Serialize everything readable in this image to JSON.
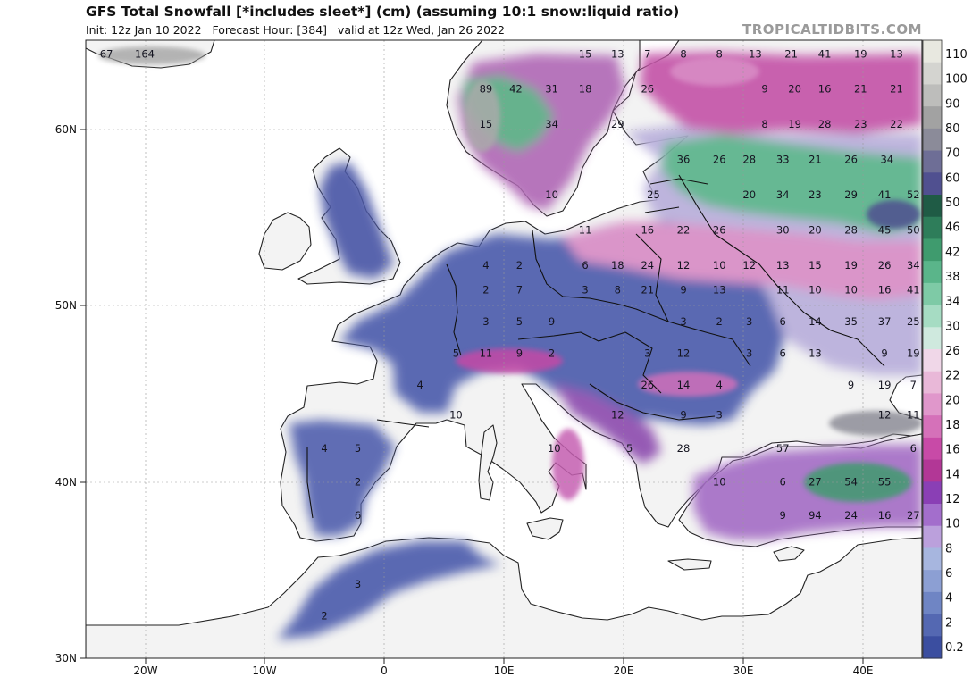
{
  "header": {
    "title": "GFS Total Snowfall [*includes sleet*] (cm) (assuming 10:1 snow:liquid ratio)",
    "init": "Init: 12z Jan 10 2022",
    "forecast_hour": "Forecast Hour: [384]",
    "valid": "valid at 12z Wed, Jan 26 2022",
    "watermark": "TROPICALTIDBITS.COM"
  },
  "axes": {
    "lat_labels": [
      "60N",
      "50N",
      "40N",
      "30N"
    ],
    "lon_labels": [
      "20W",
      "10W",
      "0",
      "10E",
      "20E",
      "30E",
      "40E"
    ]
  },
  "colorbar": {
    "labels": [
      "110",
      "100",
      "90",
      "80",
      "70",
      "60",
      "50",
      "46",
      "42",
      "38",
      "34",
      "30",
      "26",
      "22",
      "20",
      "18",
      "16",
      "14",
      "12",
      "10",
      "8",
      "6",
      "4",
      "2",
      "0.2"
    ],
    "colors": [
      "#e8e8e0",
      "#d4d4d0",
      "#bdbdbb",
      "#a2a2a2",
      "#8b8b99",
      "#6e6e96",
      "#505090",
      "#1f5b45",
      "#2e7d5a",
      "#3f9b6e",
      "#5ab58a",
      "#7ecaa6",
      "#a6dcc3",
      "#cfe9de",
      "#f0d7e8",
      "#e9b8d8",
      "#e097cb",
      "#d571b9",
      "#c84aa7",
      "#b23796",
      "#8a3fb5",
      "#a36ecc",
      "#bba0dc",
      "#a7b6df",
      "#8c9fd3",
      "#6f85c4",
      "#5468b2",
      "#3b4ea0"
    ]
  },
  "map_values": [
    {
      "t": "67",
      "lat": 64.3,
      "lon": -23.2
    },
    {
      "t": "164",
      "lat": 64.3,
      "lon": -20.0
    },
    {
      "t": "15",
      "lat": 64.3,
      "lon": 16.8
    },
    {
      "t": "13",
      "lat": 64.3,
      "lon": 19.5
    },
    {
      "t": "7",
      "lat": 64.3,
      "lon": 22.0
    },
    {
      "t": "8",
      "lat": 64.3,
      "lon": 25.0
    },
    {
      "t": "8",
      "lat": 64.3,
      "lon": 28.0
    },
    {
      "t": "13",
      "lat": 64.3,
      "lon": 31.0
    },
    {
      "t": "21",
      "lat": 64.3,
      "lon": 34.0
    },
    {
      "t": "41",
      "lat": 64.3,
      "lon": 36.8
    },
    {
      "t": "19",
      "lat": 64.3,
      "lon": 39.8
    },
    {
      "t": "13",
      "lat": 64.3,
      "lon": 42.8
    },
    {
      "t": "89",
      "lat": 62.3,
      "lon": 8.5
    },
    {
      "t": "42",
      "lat": 62.3,
      "lon": 11.0
    },
    {
      "t": "31",
      "lat": 62.3,
      "lon": 14.0
    },
    {
      "t": "18",
      "lat": 62.3,
      "lon": 16.8
    },
    {
      "t": "26",
      "lat": 62.3,
      "lon": 22.0
    },
    {
      "t": "9",
      "lat": 62.3,
      "lon": 31.8
    },
    {
      "t": "20",
      "lat": 62.3,
      "lon": 34.3
    },
    {
      "t": "16",
      "lat": 62.3,
      "lon": 36.8
    },
    {
      "t": "21",
      "lat": 62.3,
      "lon": 39.8
    },
    {
      "t": "21",
      "lat": 62.3,
      "lon": 42.8
    },
    {
      "t": "15",
      "lat": 60.3,
      "lon": 8.5
    },
    {
      "t": "34",
      "lat": 60.3,
      "lon": 14.0
    },
    {
      "t": "29",
      "lat": 60.3,
      "lon": 19.5
    },
    {
      "t": "8",
      "lat": 60.3,
      "lon": 31.8
    },
    {
      "t": "19",
      "lat": 60.3,
      "lon": 34.3
    },
    {
      "t": "28",
      "lat": 60.3,
      "lon": 36.8
    },
    {
      "t": "23",
      "lat": 60.3,
      "lon": 39.8
    },
    {
      "t": "22",
      "lat": 60.3,
      "lon": 42.8
    },
    {
      "t": "36",
      "lat": 58.3,
      "lon": 25.0
    },
    {
      "t": "26",
      "lat": 58.3,
      "lon": 28.0
    },
    {
      "t": "28",
      "lat": 58.3,
      "lon": 30.5
    },
    {
      "t": "33",
      "lat": 58.3,
      "lon": 33.3
    },
    {
      "t": "21",
      "lat": 58.3,
      "lon": 36.0
    },
    {
      "t": "26",
      "lat": 58.3,
      "lon": 39.0
    },
    {
      "t": "34",
      "lat": 58.3,
      "lon": 42.0
    },
    {
      "t": "10",
      "lat": 56.3,
      "lon": 14.0
    },
    {
      "t": "25",
      "lat": 56.3,
      "lon": 22.5
    },
    {
      "t": "20",
      "lat": 56.3,
      "lon": 30.5
    },
    {
      "t": "34",
      "lat": 56.3,
      "lon": 33.3
    },
    {
      "t": "23",
      "lat": 56.3,
      "lon": 36.0
    },
    {
      "t": "29",
      "lat": 56.3,
      "lon": 39.0
    },
    {
      "t": "41",
      "lat": 56.3,
      "lon": 41.8
    },
    {
      "t": "52",
      "lat": 56.3,
      "lon": 44.2
    },
    {
      "t": "11",
      "lat": 54.3,
      "lon": 16.8
    },
    {
      "t": "16",
      "lat": 54.3,
      "lon": 22.0
    },
    {
      "t": "22",
      "lat": 54.3,
      "lon": 25.0
    },
    {
      "t": "26",
      "lat": 54.3,
      "lon": 28.0
    },
    {
      "t": "30",
      "lat": 54.3,
      "lon": 33.3
    },
    {
      "t": "20",
      "lat": 54.3,
      "lon": 36.0
    },
    {
      "t": "28",
      "lat": 54.3,
      "lon": 39.0
    },
    {
      "t": "45",
      "lat": 54.3,
      "lon": 41.8
    },
    {
      "t": "50",
      "lat": 54.3,
      "lon": 44.2
    },
    {
      "t": "4",
      "lat": 52.3,
      "lon": 8.5
    },
    {
      "t": "2",
      "lat": 52.3,
      "lon": 11.3
    },
    {
      "t": "6",
      "lat": 52.3,
      "lon": 16.8
    },
    {
      "t": "18",
      "lat": 52.3,
      "lon": 19.5
    },
    {
      "t": "24",
      "lat": 52.3,
      "lon": 22.0
    },
    {
      "t": "12",
      "lat": 52.3,
      "lon": 25.0
    },
    {
      "t": "10",
      "lat": 52.3,
      "lon": 28.0
    },
    {
      "t": "12",
      "lat": 52.3,
      "lon": 30.5
    },
    {
      "t": "13",
      "lat": 52.3,
      "lon": 33.3
    },
    {
      "t": "15",
      "lat": 52.3,
      "lon": 36.0
    },
    {
      "t": "19",
      "lat": 52.3,
      "lon": 39.0
    },
    {
      "t": "26",
      "lat": 52.3,
      "lon": 41.8
    },
    {
      "t": "34",
      "lat": 52.3,
      "lon": 44.2
    },
    {
      "t": "2",
      "lat": 50.9,
      "lon": 8.5
    },
    {
      "t": "7",
      "lat": 50.9,
      "lon": 11.3
    },
    {
      "t": "3",
      "lat": 50.9,
      "lon": 16.8
    },
    {
      "t": "8",
      "lat": 50.9,
      "lon": 19.5
    },
    {
      "t": "21",
      "lat": 50.9,
      "lon": 22.0
    },
    {
      "t": "9",
      "lat": 50.9,
      "lon": 25.0
    },
    {
      "t": "13",
      "lat": 50.9,
      "lon": 28.0
    },
    {
      "t": "11",
      "lat": 50.9,
      "lon": 33.3
    },
    {
      "t": "10",
      "lat": 50.9,
      "lon": 36.0
    },
    {
      "t": "10",
      "lat": 50.9,
      "lon": 39.0
    },
    {
      "t": "16",
      "lat": 50.9,
      "lon": 41.8
    },
    {
      "t": "41",
      "lat": 50.9,
      "lon": 44.2
    },
    {
      "t": "3",
      "lat": 49.1,
      "lon": 8.5
    },
    {
      "t": "5",
      "lat": 49.1,
      "lon": 11.3
    },
    {
      "t": "9",
      "lat": 49.1,
      "lon": 14.0
    },
    {
      "t": "3",
      "lat": 49.1,
      "lon": 25.0
    },
    {
      "t": "2",
      "lat": 49.1,
      "lon": 28.0
    },
    {
      "t": "3",
      "lat": 49.1,
      "lon": 30.5
    },
    {
      "t": "6",
      "lat": 49.1,
      "lon": 33.3
    },
    {
      "t": "14",
      "lat": 49.1,
      "lon": 36.0
    },
    {
      "t": "35",
      "lat": 49.1,
      "lon": 39.0
    },
    {
      "t": "37",
      "lat": 49.1,
      "lon": 41.8
    },
    {
      "t": "25",
      "lat": 49.1,
      "lon": 44.2
    },
    {
      "t": "5",
      "lat": 47.3,
      "lon": 6.0
    },
    {
      "t": "11",
      "lat": 47.3,
      "lon": 8.5
    },
    {
      "t": "9",
      "lat": 47.3,
      "lon": 11.3
    },
    {
      "t": "2",
      "lat": 47.3,
      "lon": 14.0
    },
    {
      "t": "3",
      "lat": 47.3,
      "lon": 22.0
    },
    {
      "t": "12",
      "lat": 47.3,
      "lon": 25.0
    },
    {
      "t": "3",
      "lat": 47.3,
      "lon": 30.5
    },
    {
      "t": "6",
      "lat": 47.3,
      "lon": 33.3
    },
    {
      "t": "13",
      "lat": 47.3,
      "lon": 36.0
    },
    {
      "t": "9",
      "lat": 47.3,
      "lon": 41.8
    },
    {
      "t": "19",
      "lat": 47.3,
      "lon": 44.2
    },
    {
      "t": "4",
      "lat": 45.5,
      "lon": 3.0
    },
    {
      "t": "26",
      "lat": 45.5,
      "lon": 22.0
    },
    {
      "t": "14",
      "lat": 45.5,
      "lon": 25.0
    },
    {
      "t": "4",
      "lat": 45.5,
      "lon": 28.0
    },
    {
      "t": "9",
      "lat": 45.5,
      "lon": 39.0
    },
    {
      "t": "19",
      "lat": 45.5,
      "lon": 41.8
    },
    {
      "t": "7",
      "lat": 45.5,
      "lon": 44.2
    },
    {
      "t": "10",
      "lat": 43.8,
      "lon": 6.0
    },
    {
      "t": "12",
      "lat": 43.8,
      "lon": 19.5
    },
    {
      "t": "9",
      "lat": 43.8,
      "lon": 25.0
    },
    {
      "t": "3",
      "lat": 43.8,
      "lon": 28.0
    },
    {
      "t": "12",
      "lat": 43.8,
      "lon": 41.8
    },
    {
      "t": "11",
      "lat": 43.8,
      "lon": 44.2
    },
    {
      "t": "4",
      "lat": 41.9,
      "lon": -5.0
    },
    {
      "t": "5",
      "lat": 41.9,
      "lon": -2.2
    },
    {
      "t": "10",
      "lat": 41.9,
      "lon": 14.2
    },
    {
      "t": "5",
      "lat": 41.9,
      "lon": 20.5
    },
    {
      "t": "28",
      "lat": 41.9,
      "lon": 25.0
    },
    {
      "t": "57",
      "lat": 41.9,
      "lon": 33.3
    },
    {
      "t": "6",
      "lat": 41.9,
      "lon": 44.2
    },
    {
      "t": "2",
      "lat": 40.0,
      "lon": -2.2
    },
    {
      "t": "10",
      "lat": 40.0,
      "lon": 28.0
    },
    {
      "t": "6",
      "lat": 40.0,
      "lon": 33.3
    },
    {
      "t": "27",
      "lat": 40.0,
      "lon": 36.0
    },
    {
      "t": "54",
      "lat": 40.0,
      "lon": 39.0
    },
    {
      "t": "55",
      "lat": 40.0,
      "lon": 41.8
    },
    {
      "t": "6",
      "lat": 38.1,
      "lon": -2.2
    },
    {
      "t": "9",
      "lat": 38.1,
      "lon": 33.3
    },
    {
      "t": "94",
      "lat": 38.1,
      "lon": 36.0
    },
    {
      "t": "24",
      "lat": 38.1,
      "lon": 39.0
    },
    {
      "t": "16",
      "lat": 38.1,
      "lon": 41.8
    },
    {
      "t": "27",
      "lat": 38.1,
      "lon": 44.2
    },
    {
      "t": "3",
      "lat": 34.2,
      "lon": -2.2
    },
    {
      "t": "2",
      "lat": 32.4,
      "lon": -5.0
    }
  ]
}
